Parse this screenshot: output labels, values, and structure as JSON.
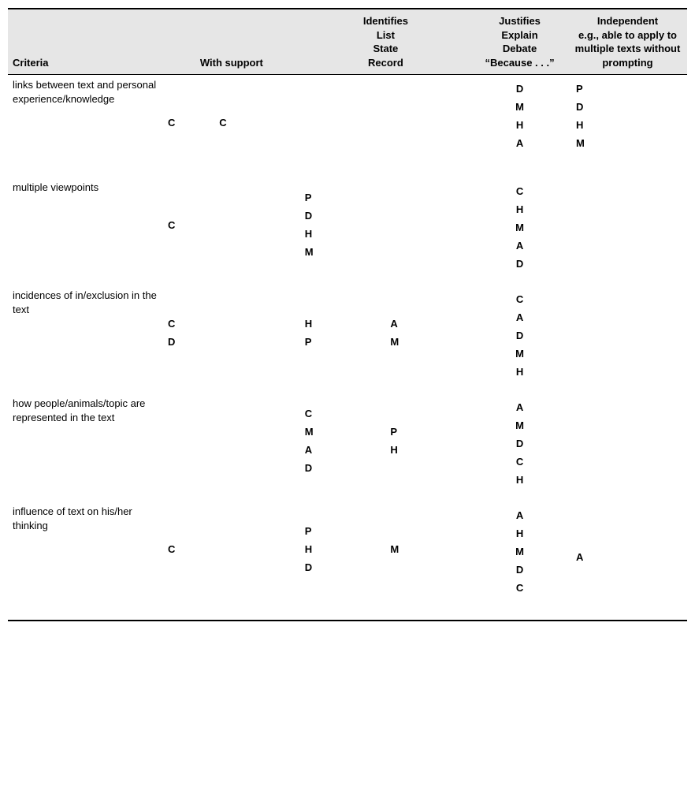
{
  "header": {
    "criteria": "Criteria",
    "with_support": "With support",
    "identifies": [
      "Identifies",
      "List",
      "State",
      "Record"
    ],
    "justifies": [
      "Justifies",
      "Explain",
      "Debate",
      "“Because . . .”"
    ],
    "independent": [
      "Independent",
      "e.g., able to apply to",
      "multiple texts without",
      "prompting"
    ]
  },
  "rows": [
    {
      "criteria": "links between text and personal experience/knowledge",
      "support_a": [
        "C"
      ],
      "support_b": [
        "C"
      ],
      "ident_a": [],
      "ident_b": [],
      "just_a": [
        "D",
        "M",
        "H",
        "A"
      ],
      "indep_a": [
        "P",
        "D",
        "H",
        "M"
      ]
    },
    {
      "criteria": "multiple viewpoints",
      "support_a": [
        "C"
      ],
      "support_b": [],
      "ident_a": [
        "P",
        "D",
        "H",
        "M"
      ],
      "ident_b": [],
      "just_a": [
        "C",
        "H",
        "M",
        "A",
        "D"
      ],
      "indep_a": []
    },
    {
      "criteria": "incidences of in/exclusion in the text",
      "support_a": [
        "C",
        "D"
      ],
      "support_b": [],
      "ident_a": [
        "H",
        "P"
      ],
      "ident_b": [
        "A",
        "M"
      ],
      "just_a": [
        "C",
        "A",
        "D",
        "M",
        "H"
      ],
      "indep_a": []
    },
    {
      "criteria": "how people/animals/topic are represented in the text",
      "support_a": [],
      "support_b": [],
      "ident_a": [
        "C",
        "M",
        "A",
        "D"
      ],
      "ident_b": [
        "P",
        "H"
      ],
      "just_a": [
        "A",
        "M",
        "D",
        "C",
        "H"
      ],
      "indep_a": []
    },
    {
      "criteria": "influence of text on his/her thinking",
      "support_a": [
        "C"
      ],
      "support_b": [],
      "ident_a": [
        "P",
        "H",
        "D"
      ],
      "ident_b": [
        "M"
      ],
      "just_a": [
        "A",
        "H",
        "M",
        "D",
        "C"
      ],
      "indep_a": [
        "A"
      ]
    }
  ]
}
